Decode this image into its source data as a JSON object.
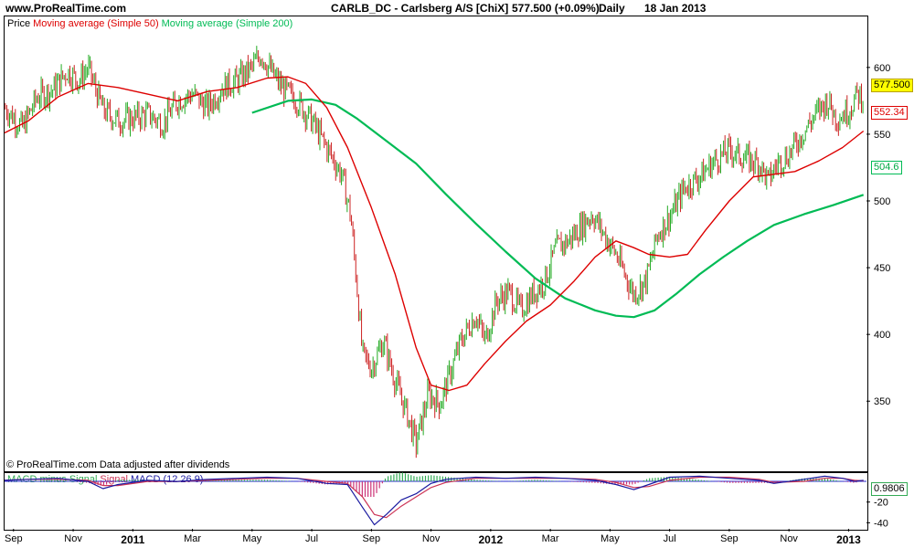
{
  "header": {
    "site": "www.ProRealTime.com",
    "title": "CARLB_DC - Carlsberg A/S [ChiX]",
    "price": "577.500 (+0.09%)",
    "period": "Daily",
    "date": "18 Jan 2013"
  },
  "legend": {
    "price": "Price",
    "ma50": "Moving average (Simple 50)",
    "ma200": "Moving average (Simple 200)"
  },
  "macd_legend": {
    "minus": "MACD minus Signal",
    "signal": "Signal",
    "macd": "MACD (12 26 9)"
  },
  "copyright": "© ProRealTime.com  Data adjusted after dividends",
  "colors": {
    "up": "#22aa22",
    "down": "#cc2222",
    "ma50": "#dd0000",
    "ma200": "#00bb55",
    "macd": "#1a1aa0",
    "signal": "#cc3355",
    "hist": "#33aa55",
    "hist_neg": "#cc3377",
    "price_tag_bg": "#ffff00"
  },
  "tags": {
    "last": "577.500",
    "ma50": "552.34",
    "ma200": "504.6",
    "macd": "0.9806"
  },
  "chart_data": {
    "type": "line",
    "title": "CARLB_DC - Carlsberg A/S [ChiX] Daily",
    "y_ticks": [
      600,
      550,
      500,
      450,
      400,
      350
    ],
    "ylim": [
      305,
      630
    ],
    "macd_ticks": [
      -20,
      -40
    ],
    "macd_lim": [
      -45,
      8
    ],
    "x_labels": [
      "Sep",
      "Nov",
      "2011",
      "Mar",
      "May",
      "Jul",
      "Sep",
      "Nov",
      "2012",
      "Mar",
      "May",
      "Jul",
      "Sep",
      "Nov",
      "2013"
    ],
    "x_label_months": [
      0,
      2,
      4,
      6,
      8,
      10,
      12,
      14,
      16,
      18,
      20,
      22,
      24,
      26,
      28
    ],
    "xlim_months": [
      -0.3,
      28.6
    ],
    "price_points": [
      [
        -0.3,
        570
      ],
      [
        0.3,
        555
      ],
      [
        0.8,
        578
      ],
      [
        1.3,
        583
      ],
      [
        1.8,
        597
      ],
      [
        2.2,
        590
      ],
      [
        2.5,
        600
      ],
      [
        3.0,
        568
      ],
      [
        3.5,
        560
      ],
      [
        4.0,
        562
      ],
      [
        4.5,
        565
      ],
      [
        5.0,
        558
      ],
      [
        5.5,
        575
      ],
      [
        6.0,
        580
      ],
      [
        6.5,
        570
      ],
      [
        7.0,
        585
      ],
      [
        7.5,
        590
      ],
      [
        8.0,
        600
      ],
      [
        8.3,
        610
      ],
      [
        8.7,
        595
      ],
      [
        9.0,
        585
      ],
      [
        9.5,
        575
      ],
      [
        10.0,
        560
      ],
      [
        10.5,
        540
      ],
      [
        11.0,
        520
      ],
      [
        11.3,
        490
      ],
      [
        11.5,
        440
      ],
      [
        11.7,
        385
      ],
      [
        12.0,
        375
      ],
      [
        12.4,
        395
      ],
      [
        12.8,
        365
      ],
      [
        13.2,
        340
      ],
      [
        13.5,
        318
      ],
      [
        13.9,
        355
      ],
      [
        14.3,
        348
      ],
      [
        14.7,
        375
      ],
      [
        15.0,
        395
      ],
      [
        15.5,
        415
      ],
      [
        15.8,
        395
      ],
      [
        16.2,
        425
      ],
      [
        16.6,
        432
      ],
      [
        17.0,
        418
      ],
      [
        17.4,
        430
      ],
      [
        17.8,
        440
      ],
      [
        18.2,
        465
      ],
      [
        18.6,
        470
      ],
      [
        19.0,
        480
      ],
      [
        19.4,
        490
      ],
      [
        19.8,
        475
      ],
      [
        20.2,
        460
      ],
      [
        20.5,
        445
      ],
      [
        20.8,
        430
      ],
      [
        21.2,
        440
      ],
      [
        21.6,
        475
      ],
      [
        22.0,
        488
      ],
      [
        22.5,
        510
      ],
      [
        23.0,
        518
      ],
      [
        23.5,
        530
      ],
      [
        24.0,
        538
      ],
      [
        24.5,
        532
      ],
      [
        25.0,
        528
      ],
      [
        25.3,
        515
      ],
      [
        25.6,
        528
      ],
      [
        26.0,
        535
      ],
      [
        26.5,
        552
      ],
      [
        27.0,
        568
      ],
      [
        27.3,
        575
      ],
      [
        27.6,
        562
      ],
      [
        28.0,
        568
      ],
      [
        28.3,
        580
      ],
      [
        28.5,
        577.5
      ]
    ],
    "ma50_points": [
      [
        -0.3,
        551
      ],
      [
        0.5,
        560
      ],
      [
        1.5,
        578
      ],
      [
        2.5,
        588
      ],
      [
        3.5,
        585
      ],
      [
        4.5,
        580
      ],
      [
        5.5,
        575
      ],
      [
        6.5,
        582
      ],
      [
        7.5,
        585
      ],
      [
        8.5,
        592
      ],
      [
        9.2,
        593
      ],
      [
        9.8,
        588
      ],
      [
        10.5,
        570
      ],
      [
        11.2,
        540
      ],
      [
        12.0,
        495
      ],
      [
        12.8,
        445
      ],
      [
        13.5,
        390
      ],
      [
        14.0,
        362
      ],
      [
        14.6,
        358
      ],
      [
        15.2,
        362
      ],
      [
        15.8,
        378
      ],
      [
        16.5,
        395
      ],
      [
        17.2,
        410
      ],
      [
        18.0,
        422
      ],
      [
        18.8,
        440
      ],
      [
        19.5,
        458
      ],
      [
        20.2,
        470
      ],
      [
        20.8,
        465
      ],
      [
        21.3,
        460
      ],
      [
        22.0,
        458
      ],
      [
        22.6,
        460
      ],
      [
        23.2,
        478
      ],
      [
        24.0,
        500
      ],
      [
        24.8,
        518
      ],
      [
        25.5,
        520
      ],
      [
        26.2,
        522
      ],
      [
        27.0,
        530
      ],
      [
        27.8,
        540
      ],
      [
        28.5,
        552.34
      ]
    ],
    "ma200_points": [
      [
        8.0,
        566
      ],
      [
        9.2,
        575
      ],
      [
        10.0,
        576
      ],
      [
        10.8,
        572
      ],
      [
        11.5,
        562
      ],
      [
        12.5,
        545
      ],
      [
        13.5,
        528
      ],
      [
        14.5,
        505
      ],
      [
        15.5,
        483
      ],
      [
        16.5,
        462
      ],
      [
        17.5,
        442
      ],
      [
        18.5,
        427
      ],
      [
        19.5,
        418
      ],
      [
        20.2,
        414
      ],
      [
        20.8,
        413
      ],
      [
        21.5,
        418
      ],
      [
        22.2,
        430
      ],
      [
        23.0,
        445
      ],
      [
        23.8,
        458
      ],
      [
        24.6,
        470
      ],
      [
        25.5,
        482
      ],
      [
        26.5,
        490
      ],
      [
        27.5,
        497
      ],
      [
        28.5,
        504.6
      ]
    ],
    "macd_points": [
      [
        -0.3,
        1
      ],
      [
        0.5,
        2
      ],
      [
        1.5,
        3
      ],
      [
        2.5,
        0
      ],
      [
        3.0,
        -7
      ],
      [
        3.5,
        -3
      ],
      [
        4.5,
        1
      ],
      [
        5.5,
        0
      ],
      [
        6.5,
        2
      ],
      [
        7.5,
        3
      ],
      [
        8.5,
        4
      ],
      [
        9.5,
        3
      ],
      [
        10.5,
        -2
      ],
      [
        11.2,
        -3
      ],
      [
        11.7,
        -25
      ],
      [
        12.1,
        -42
      ],
      [
        12.5,
        -32
      ],
      [
        13.0,
        -18
      ],
      [
        13.5,
        -12
      ],
      [
        14.0,
        -2
      ],
      [
        14.5,
        2
      ],
      [
        15.5,
        4
      ],
      [
        16.5,
        3
      ],
      [
        17.5,
        4
      ],
      [
        18.5,
        3
      ],
      [
        19.5,
        1
      ],
      [
        20.2,
        -3
      ],
      [
        20.8,
        -8
      ],
      [
        21.3,
        -3
      ],
      [
        22.0,
        4
      ],
      [
        23.0,
        5
      ],
      [
        24.0,
        3
      ],
      [
        25.0,
        1
      ],
      [
        25.5,
        -2
      ],
      [
        26.5,
        2
      ],
      [
        27.2,
        5
      ],
      [
        27.8,
        3
      ],
      [
        28.2,
        0
      ],
      [
        28.5,
        0.98
      ]
    ],
    "signal_points": [
      [
        -0.3,
        1
      ],
      [
        0.5,
        2
      ],
      [
        1.5,
        2
      ],
      [
        2.5,
        1
      ],
      [
        3.0,
        -4
      ],
      [
        3.5,
        -4
      ],
      [
        4.5,
        0
      ],
      [
        5.5,
        0
      ],
      [
        6.5,
        1
      ],
      [
        7.5,
        2
      ],
      [
        8.5,
        3
      ],
      [
        9.5,
        3
      ],
      [
        10.5,
        0
      ],
      [
        11.2,
        -2
      ],
      [
        11.7,
        -15
      ],
      [
        12.1,
        -32
      ],
      [
        12.5,
        -35
      ],
      [
        13.0,
        -24
      ],
      [
        13.5,
        -15
      ],
      [
        14.0,
        -6
      ],
      [
        14.5,
        -1
      ],
      [
        15.5,
        3
      ],
      [
        16.5,
        3
      ],
      [
        17.5,
        3
      ],
      [
        18.5,
        3
      ],
      [
        19.5,
        2
      ],
      [
        20.2,
        -1
      ],
      [
        20.8,
        -6
      ],
      [
        21.3,
        -5
      ],
      [
        22.0,
        1
      ],
      [
        23.0,
        4
      ],
      [
        24.0,
        4
      ],
      [
        25.0,
        2
      ],
      [
        25.5,
        -1
      ],
      [
        26.5,
        0
      ],
      [
        27.2,
        3
      ],
      [
        27.8,
        3
      ],
      [
        28.2,
        1
      ],
      [
        28.5,
        0.5
      ]
    ]
  }
}
